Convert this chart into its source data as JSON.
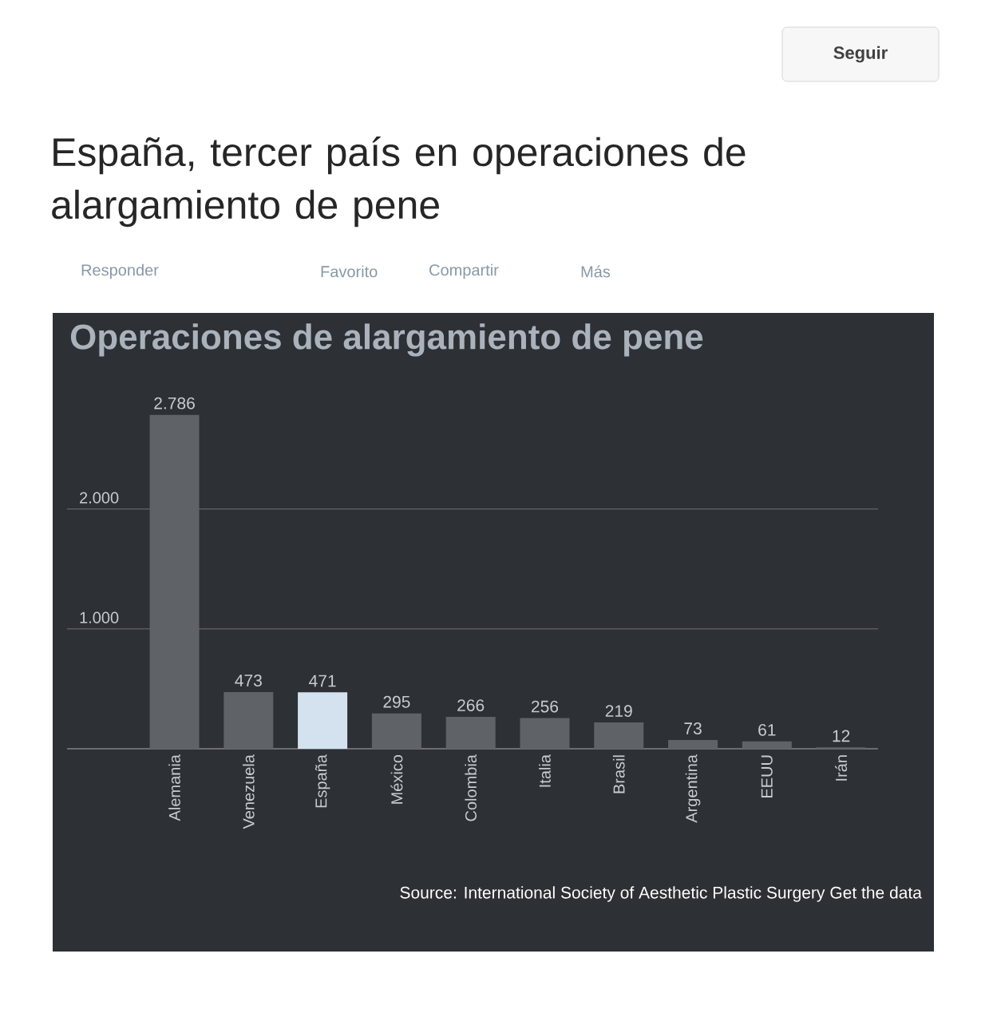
{
  "chart_data": {
    "type": "bar",
    "title": "Operaciones de alargamiento de pene",
    "categories": [
      "Alemania",
      "Venezuela",
      "España",
      "México",
      "Colombia",
      "Italia",
      "Brasil",
      "Argentina",
      "EEUU",
      "Irán"
    ],
    "values": [
      2786,
      473,
      471,
      295,
      266,
      256,
      219,
      73,
      61,
      12
    ],
    "colors": [
      "#5f6368",
      "#5f6368",
      "#d4e2f0",
      "#5f6368",
      "#5f6368",
      "#5f6368",
      "#5f6368",
      "#5f6368",
      "#5f6368",
      "#5f6368"
    ],
    "value_labels": [
      "2.786",
      "473",
      "471",
      "295",
      "266",
      "256",
      "219",
      "73",
      "61",
      "12"
    ],
    "ylim": [
      0,
      3250
    ],
    "yticks": [
      {
        "value": 1000,
        "label": "1.000"
      },
      {
        "value": 2000,
        "label": "2.000"
      }
    ],
    "grid": "y",
    "annotations": [
      "España, tercer país en operaciones de alargamiento de pene",
      "Responder",
      "Favorito",
      "Compartir",
      "Más",
      "Seguir",
      "Source: International Society of Aesthetic Plastic Surgery",
      "Get the data"
    ]
  }
}
